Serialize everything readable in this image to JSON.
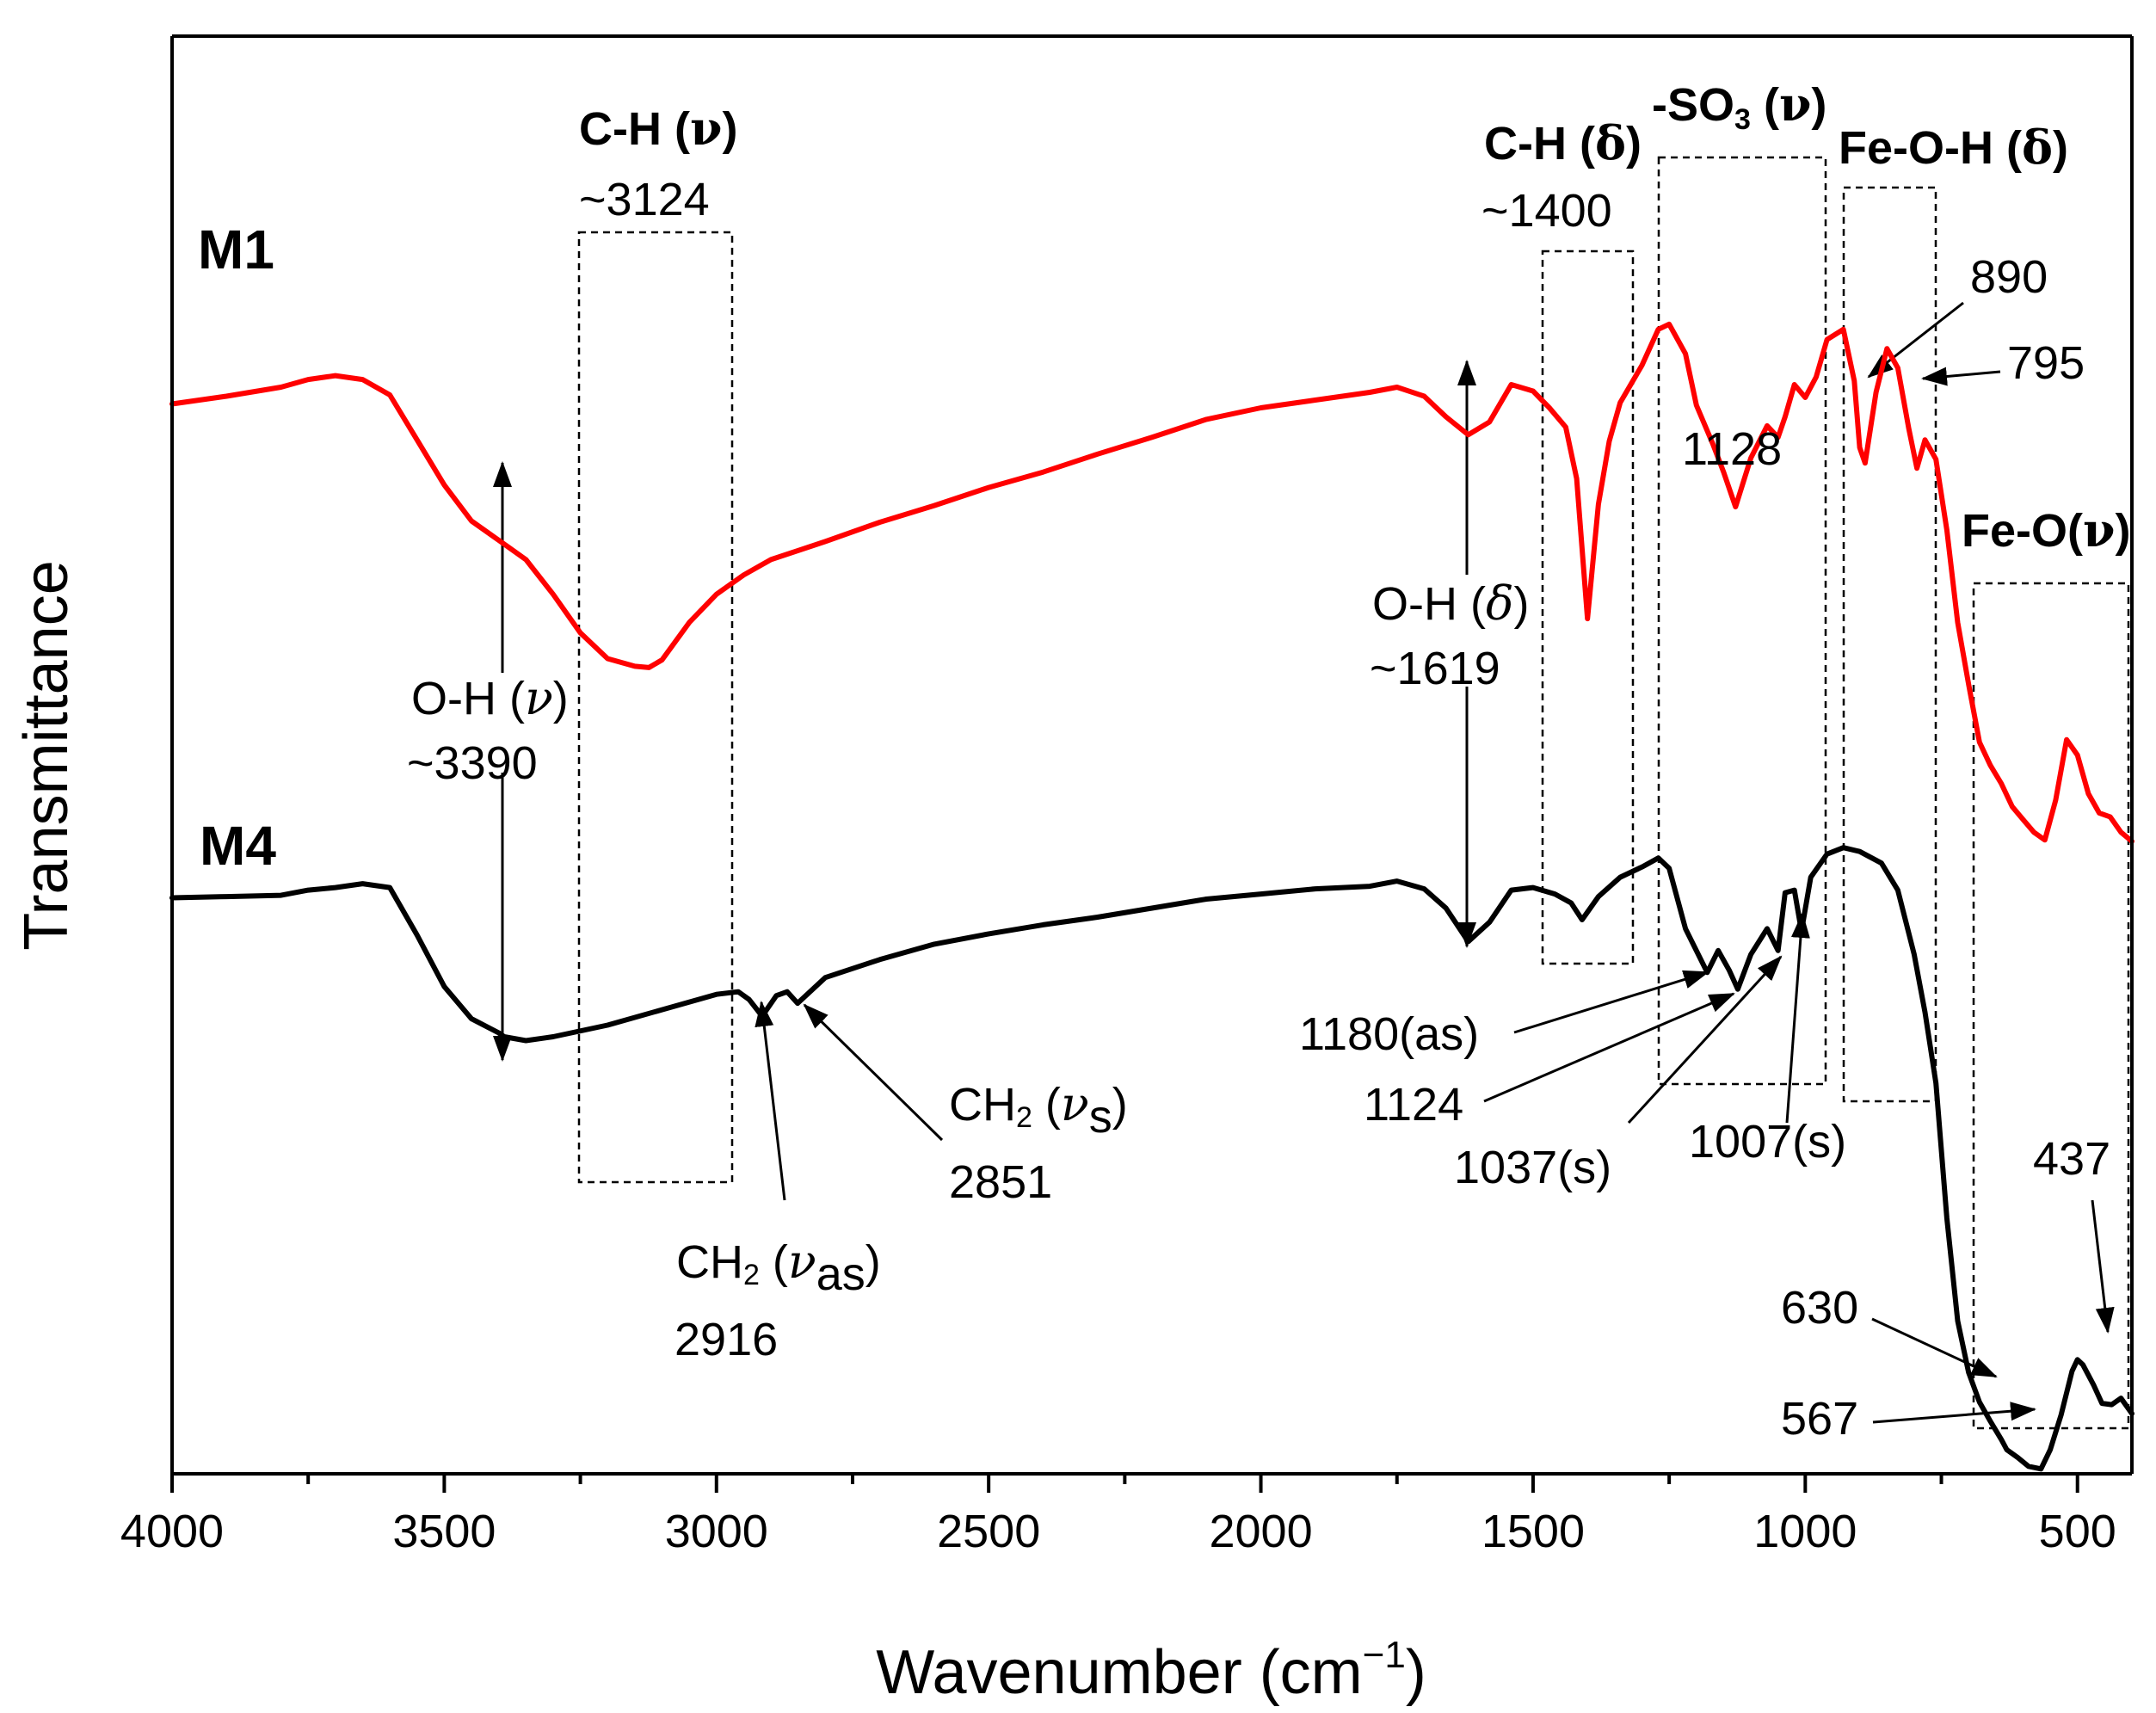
{
  "chart_data": {
    "type": "line",
    "title": "",
    "xlabel": "Wavenumber (cm",
    "xlabel_sup": "−1",
    "xlabel_close": ")",
    "ylabel": "Transmittance",
    "xlim": [
      4000,
      400
    ],
    "ylim": [
      0,
      100
    ],
    "x_ticks": [
      4000,
      3500,
      3000,
      2500,
      2000,
      1500,
      1000,
      500
    ],
    "x_tick_labels": [
      "4000",
      "3500",
      "3000",
      "2500",
      "2000",
      "1500",
      "1000",
      "500"
    ],
    "colors": {
      "M1": "#ff0000",
      "M4": "#000000"
    },
    "series": [
      {
        "name": "M1",
        "color": "#ff0000",
        "x": [
          4000,
          3900,
          3800,
          3750,
          3700,
          3650,
          3600,
          3550,
          3500,
          3450,
          3400,
          3350,
          3300,
          3250,
          3200,
          3150,
          3124,
          3100,
          3050,
          3000,
          2950,
          2900,
          2800,
          2700,
          2600,
          2500,
          2400,
          2300,
          2200,
          2100,
          2000,
          1900,
          1800,
          1750,
          1700,
          1660,
          1619,
          1580,
          1540,
          1500,
          1470,
          1440,
          1420,
          1400,
          1380,
          1360,
          1340,
          1300,
          1270,
          1250,
          1220,
          1200,
          1170,
          1150,
          1128,
          1100,
          1070,
          1050,
          1037,
          1020,
          1000,
          980,
          960,
          930,
          910,
          900,
          890,
          870,
          850,
          830,
          810,
          795,
          780,
          760,
          740,
          720,
          700,
          680,
          660,
          640,
          620,
          600,
          580,
          560,
          540,
          520,
          500,
          480,
          460,
          440,
          420,
          400
        ],
        "values": [
          79.3,
          79.9,
          80.6,
          81.2,
          81.5,
          81.2,
          80.0,
          76.5,
          73.0,
          70.2,
          68.7,
          67.2,
          64.5,
          61.5,
          59.5,
          58.9,
          58.8,
          59.4,
          62.3,
          64.5,
          66.0,
          67.2,
          68.6,
          70.1,
          71.4,
          72.8,
          74.0,
          75.4,
          76.7,
          78.1,
          79.0,
          79.6,
          80.2,
          80.6,
          79.9,
          78.3,
          76.9,
          77.9,
          80.8,
          80.3,
          79.0,
          77.5,
          73.5,
          62.6,
          71.5,
          76.4,
          79.4,
          82.3,
          85.1,
          85.5,
          83.2,
          79.2,
          76.2,
          74.0,
          71.3,
          75.1,
          77.6,
          76.7,
          78.3,
          80.8,
          79.8,
          81.4,
          84.3,
          85.1,
          81.1,
          75.9,
          74.7,
          80.2,
          83.6,
          82.1,
          77.4,
          74.3,
          76.5,
          75.0,
          69.5,
          62.3,
          57.5,
          53.0,
          51.2,
          49.8,
          48.0,
          47.0,
          46.0,
          45.4,
          48.5,
          53.2,
          52.0,
          49.0,
          47.5,
          47.2,
          46.0,
          45.3
        ]
      },
      {
        "name": "M4",
        "color": "#000000",
        "x": [
          4000,
          3900,
          3800,
          3750,
          3700,
          3650,
          3600,
          3550,
          3500,
          3450,
          3400,
          3390,
          3350,
          3300,
          3200,
          3100,
          3000,
          2960,
          2940,
          2916,
          2890,
          2870,
          2851,
          2800,
          2700,
          2600,
          2500,
          2400,
          2300,
          2200,
          2100,
          2000,
          1900,
          1800,
          1750,
          1700,
          1660,
          1619,
          1580,
          1540,
          1500,
          1460,
          1430,
          1410,
          1380,
          1340,
          1300,
          1270,
          1250,
          1220,
          1180,
          1160,
          1140,
          1124,
          1100,
          1070,
          1050,
          1037,
          1020,
          1007,
          990,
          960,
          930,
          900,
          860,
          830,
          800,
          780,
          760,
          740,
          720,
          700,
          680,
          660,
          640,
          630,
          610,
          590,
          567,
          550,
          530,
          510,
          500,
          490,
          470,
          455,
          437,
          420,
          400
        ],
        "values": [
          40.9,
          41.0,
          41.1,
          41.5,
          41.7,
          42.0,
          41.7,
          38.0,
          34.0,
          31.5,
          30.4,
          30.1,
          29.8,
          30.1,
          31.0,
          32.2,
          33.4,
          33.6,
          33.0,
          31.7,
          33.3,
          33.6,
          32.7,
          34.7,
          36.1,
          37.3,
          38.1,
          38.8,
          39.4,
          40.1,
          40.8,
          41.2,
          41.6,
          41.8,
          42.2,
          41.6,
          40.1,
          37.5,
          39.0,
          41.5,
          41.7,
          41.2,
          40.5,
          39.2,
          41.0,
          42.5,
          43.3,
          44.0,
          43.2,
          38.5,
          35.1,
          36.8,
          35.3,
          33.8,
          36.5,
          38.5,
          36.8,
          41.3,
          41.5,
          38.3,
          42.5,
          44.3,
          44.8,
          44.5,
          43.6,
          41.5,
          36.5,
          32.0,
          26.5,
          16.0,
          8.0,
          4.0,
          1.7,
          0.2,
          -1.2,
          -2.0,
          -2.6,
          -3.3,
          -3.5,
          -2.0,
          0.7,
          4.1,
          5.0,
          4.6,
          3.0,
          1.6,
          1.5,
          2.0,
          0.8
        ]
      }
    ],
    "series_labels": [
      "M1",
      "M4"
    ],
    "annotations": {
      "ch_stretch": {
        "title": "C-H (",
        "greek": "ν",
        "close": ")",
        "value": "~3124"
      },
      "oh_stretch": {
        "title": "O-H (",
        "greek": "ν",
        "close": ")",
        "value": "~3390"
      },
      "ch_bend": {
        "title": "C-H (",
        "greek": "δ",
        "close": ")",
        "value": "~1400"
      },
      "oh_bend": {
        "title": "O-H (",
        "greek": "δ",
        "close": ")",
        "value": "~1619"
      },
      "so3": {
        "title": "-SO",
        "sub": "3",
        "greek": "ν",
        "open": " (",
        "close": ")"
      },
      "feoh": {
        "title": "Fe-O-H (",
        "greek": "δ",
        "close": ")"
      },
      "feo": {
        "title": "Fe-O(",
        "greek": "ν",
        "close": ")"
      },
      "ch2_as": {
        "title": "CH",
        "sub": "2",
        "open": " (",
        "greek": "ν",
        "gsub": "as",
        "close": ")",
        "value": "2916"
      },
      "ch2_s": {
        "title": "CH",
        "sub": "2",
        "open": " (",
        "greek": "ν",
        "gsub": "s",
        "close": ")",
        "value": "2851"
      },
      "p1128": "1128",
      "p890": "890",
      "p795": "795",
      "p1180": "1180(as)",
      "p1124": "1124",
      "p1037": "1037(s)",
      "p1007": "1007(s)",
      "p630": "630",
      "p567": "567",
      "p437": "437"
    }
  }
}
